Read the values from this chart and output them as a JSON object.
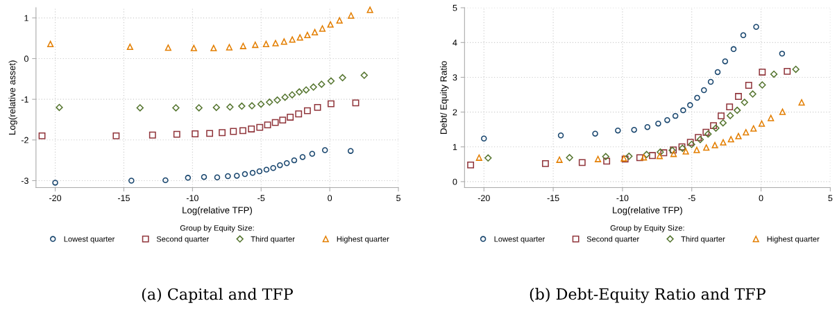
{
  "chart_data": [
    {
      "type": "scatter",
      "xlabel": "Log(relative TFP)",
      "ylabel": "Log(relative asset)",
      "legend_title": "Group by Equity Size:",
      "legend": "bottom",
      "grid": true,
      "xlim": [
        -21.4,
        5
      ],
      "ylim": [
        -3.17,
        1.25
      ],
      "xticks": [
        -20,
        -15,
        -10,
        -5,
        0,
        5
      ],
      "yticks": [
        -3,
        -2,
        -1,
        0,
        1
      ],
      "annotations": [
        "(a) Capital and TFP"
      ],
      "series": [
        {
          "name": "Lowest quarter",
          "color": "#1a476f",
          "marker": "circle",
          "x": [
            -20.0,
            -14.45,
            -11.97,
            -10.33,
            -9.16,
            -8.2,
            -7.42,
            -6.77,
            -6.18,
            -5.62,
            -5.12,
            -4.61,
            -4.12,
            -3.63,
            -3.13,
            -2.59,
            -1.98,
            -1.28,
            -0.35,
            1.52
          ],
          "values": [
            -3.05,
            -3.0,
            -2.99,
            -2.93,
            -2.91,
            -2.92,
            -2.89,
            -2.88,
            -2.84,
            -2.81,
            -2.77,
            -2.73,
            -2.69,
            -2.62,
            -2.57,
            -2.5,
            -2.42,
            -2.34,
            -2.25,
            -2.27
          ]
        },
        {
          "name": "Second quarter",
          "color": "#90353b",
          "marker": "square",
          "x": [
            -20.96,
            -15.56,
            -12.91,
            -11.14,
            -9.81,
            -8.75,
            -7.84,
            -7.02,
            -6.33,
            -5.71,
            -5.1,
            -4.53,
            -3.97,
            -3.43,
            -2.88,
            -2.27,
            -1.63,
            -0.89,
            0.09,
            1.89
          ],
          "values": [
            -1.9,
            -1.9,
            -1.88,
            -1.86,
            -1.85,
            -1.84,
            -1.82,
            -1.79,
            -1.77,
            -1.73,
            -1.69,
            -1.63,
            -1.57,
            -1.51,
            -1.44,
            -1.36,
            -1.28,
            -1.2,
            -1.11,
            -1.09
          ]
        },
        {
          "name": "Third quarter",
          "color": "#55752f",
          "marker": "diamond",
          "x": [
            -19.7,
            -13.82,
            -11.21,
            -9.53,
            -8.26,
            -7.27,
            -6.41,
            -5.67,
            -5.01,
            -4.39,
            -3.82,
            -3.26,
            -2.74,
            -2.22,
            -1.72,
            -1.19,
            -0.6,
            0.09,
            0.93,
            2.51
          ],
          "values": [
            -1.2,
            -1.21,
            -1.21,
            -1.21,
            -1.2,
            -1.19,
            -1.17,
            -1.16,
            -1.12,
            -1.07,
            -1.02,
            -0.95,
            -0.89,
            -0.82,
            -0.77,
            -0.7,
            -0.63,
            -0.55,
            -0.47,
            -0.41
          ]
        },
        {
          "name": "Highest quarter",
          "color": "#e37e00",
          "marker": "triangle",
          "x": [
            -20.35,
            -14.55,
            -11.77,
            -9.9,
            -8.46,
            -7.32,
            -6.31,
            -5.43,
            -4.64,
            -3.95,
            -3.33,
            -2.73,
            -2.17,
            -1.63,
            -1.09,
            -0.54,
            0.05,
            0.71,
            1.55,
            2.93
          ],
          "values": [
            0.36,
            0.29,
            0.27,
            0.26,
            0.26,
            0.28,
            0.31,
            0.34,
            0.36,
            0.38,
            0.42,
            0.47,
            0.52,
            0.58,
            0.65,
            0.74,
            0.84,
            0.94,
            1.06,
            1.2
          ]
        }
      ]
    },
    {
      "type": "scatter",
      "xlabel": "Log(relative TFP)",
      "ylabel": "Debt/ Equity Ratio",
      "legend_title": "Group by Equity Size:",
      "legend": "bottom",
      "grid": true,
      "xlim": [
        -21.4,
        5
      ],
      "ylim": [
        -0.17,
        5
      ],
      "xticks": [
        -20,
        -15,
        -10,
        -5,
        0,
        5
      ],
      "yticks": [
        0,
        1,
        2,
        3,
        4,
        5
      ],
      "annotations": [
        "(b) Debt-Equity Ratio and TFP"
      ],
      "series": [
        {
          "name": "Lowest quarter",
          "color": "#1a476f",
          "marker": "circle",
          "x": [
            -20.0,
            -14.45,
            -11.97,
            -10.33,
            -9.16,
            -8.2,
            -7.42,
            -6.77,
            -6.18,
            -5.62,
            -5.12,
            -4.61,
            -4.12,
            -3.63,
            -3.13,
            -2.59,
            -1.98,
            -1.28,
            -0.35,
            1.52
          ],
          "values": [
            1.24,
            1.33,
            1.38,
            1.47,
            1.49,
            1.57,
            1.67,
            1.77,
            1.89,
            2.05,
            2.2,
            2.41,
            2.63,
            2.87,
            3.15,
            3.46,
            3.81,
            4.21,
            4.45,
            3.68
          ]
        },
        {
          "name": "Second quarter",
          "color": "#90353b",
          "marker": "square",
          "x": [
            -20.96,
            -15.56,
            -12.91,
            -11.14,
            -9.81,
            -8.75,
            -7.84,
            -7.02,
            -6.33,
            -5.71,
            -5.1,
            -4.53,
            -3.97,
            -3.43,
            -2.88,
            -2.27,
            -1.63,
            -0.89,
            0.09,
            1.89
          ],
          "values": [
            0.48,
            0.52,
            0.55,
            0.59,
            0.65,
            0.69,
            0.75,
            0.83,
            0.91,
            1.0,
            1.13,
            1.27,
            1.42,
            1.61,
            1.89,
            2.15,
            2.45,
            2.77,
            3.15,
            3.17
          ]
        },
        {
          "name": "Third quarter",
          "color": "#55752f",
          "marker": "diamond",
          "x": [
            -19.7,
            -13.82,
            -11.21,
            -9.53,
            -8.26,
            -7.27,
            -6.41,
            -5.67,
            -5.01,
            -4.39,
            -3.82,
            -3.26,
            -2.74,
            -2.22,
            -1.72,
            -1.19,
            -0.6,
            0.09,
            0.93,
            2.51
          ],
          "values": [
            0.68,
            0.69,
            0.72,
            0.73,
            0.78,
            0.85,
            0.9,
            0.96,
            1.07,
            1.21,
            1.37,
            1.54,
            1.69,
            1.9,
            2.05,
            2.28,
            2.52,
            2.78,
            3.09,
            3.23
          ]
        },
        {
          "name": "Highest quarter",
          "color": "#e37e00",
          "marker": "triangle",
          "x": [
            -20.35,
            -14.55,
            -11.77,
            -9.9,
            -8.46,
            -7.32,
            -6.31,
            -5.43,
            -4.64,
            -3.95,
            -3.33,
            -2.73,
            -2.17,
            -1.63,
            -1.09,
            -0.54,
            0.05,
            0.71,
            1.55,
            2.93
          ],
          "values": [
            0.69,
            0.63,
            0.65,
            0.67,
            0.7,
            0.74,
            0.8,
            0.87,
            0.91,
            0.98,
            1.05,
            1.13,
            1.22,
            1.31,
            1.42,
            1.53,
            1.67,
            1.83,
            2.01,
            2.28
          ]
        }
      ]
    }
  ]
}
